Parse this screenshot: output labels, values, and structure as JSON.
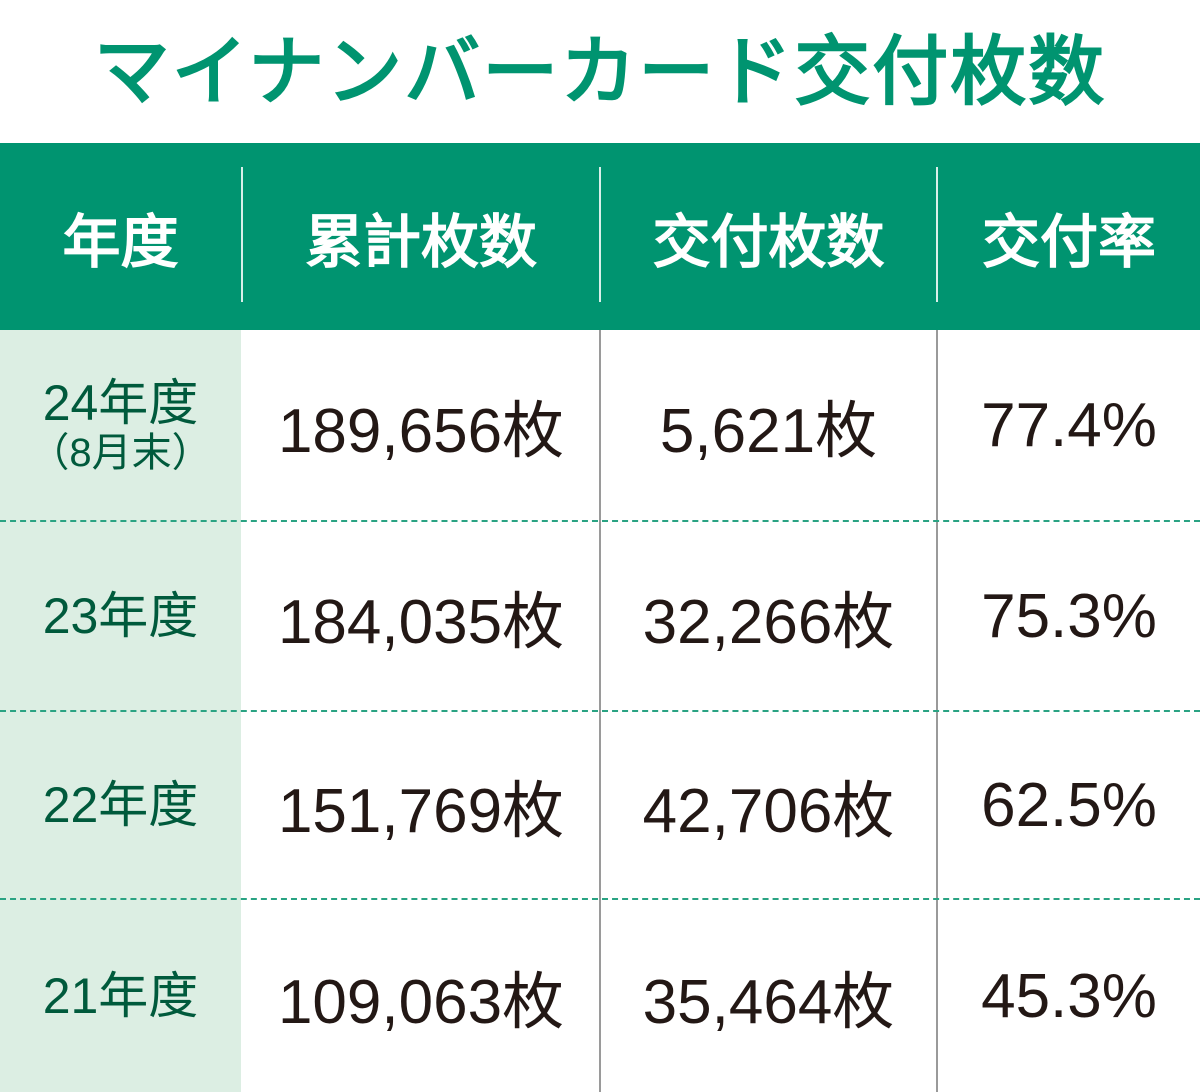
{
  "title": "マイナンバーカード交付枚数",
  "colors": {
    "accent": "#009470",
    "year_column_bg": "#dceee3",
    "year_text": "#005a3c",
    "value_text": "#231815"
  },
  "headers": [
    "年度",
    "累計枚数",
    "交付枚数",
    "交付率"
  ],
  "rows": [
    {
      "year": "24年度",
      "note": "（8月末）",
      "cumulative": "189,656枚",
      "issued": "5,621枚",
      "rate": "77.4%"
    },
    {
      "year": "23年度",
      "note": "",
      "cumulative": "184,035枚",
      "issued": "32,266枚",
      "rate": "75.3%"
    },
    {
      "year": "22年度",
      "note": "",
      "cumulative": "151,769枚",
      "issued": "42,706枚",
      "rate": "62.5%"
    },
    {
      "year": "21年度",
      "note": "",
      "cumulative": "109,063枚",
      "issued": "35,464枚",
      "rate": "45.3%"
    }
  ],
  "chart_data": {
    "type": "table",
    "title": "マイナンバーカード交付枚数",
    "columns": [
      "年度",
      "累計枚数",
      "交付枚数",
      "交付率"
    ],
    "rows": [
      [
        "24年度（8月末）",
        189656,
        5621,
        77.4
      ],
      [
        "23年度",
        184035,
        32266,
        75.3
      ],
      [
        "22年度",
        151769,
        42706,
        62.5
      ],
      [
        "21年度",
        109063,
        35464,
        45.3
      ]
    ]
  }
}
